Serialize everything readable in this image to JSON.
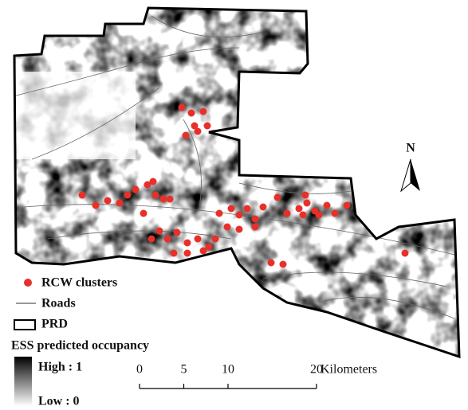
{
  "north": "N",
  "legend": {
    "clusters": "RCW clusters",
    "roads": "Roads",
    "boundary": "PRD",
    "title": "ESS predicted occupancy",
    "high": "High : 1",
    "low": "Low : 0"
  },
  "scale_bar": {
    "ticks": [
      0,
      5,
      10,
      20
    ],
    "unit": "Kilometers"
  }
}
